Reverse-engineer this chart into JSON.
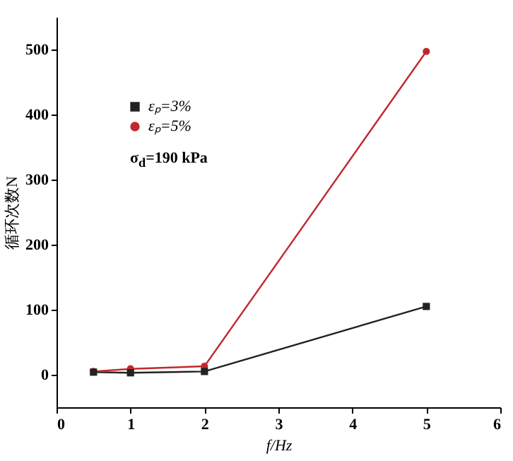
{
  "chart_data": {
    "type": "line",
    "xlabel": "f/Hz",
    "ylabel": "循环次数N",
    "x": [
      0.5,
      1,
      2,
      5
    ],
    "series": [
      {
        "name": "εₚ=3%",
        "color": "#222222",
        "marker": "square",
        "values": [
          4,
          3,
          5,
          105
        ]
      },
      {
        "name": "εₚ=5%",
        "color": "#c0282d",
        "marker": "circle",
        "values": [
          5,
          9,
          13,
          497
        ]
      }
    ],
    "annotations": [
      "σ$_{d}$=190 kPa"
    ],
    "xlim": [
      0,
      6
    ],
    "xticks": [
      0,
      1,
      2,
      3,
      4,
      5,
      6
    ],
    "ylim": [
      -50,
      550
    ],
    "yticks": [
      0,
      100,
      200,
      300,
      400,
      500
    ],
    "grid": false,
    "legend": "top left",
    "line_style": "solid"
  }
}
